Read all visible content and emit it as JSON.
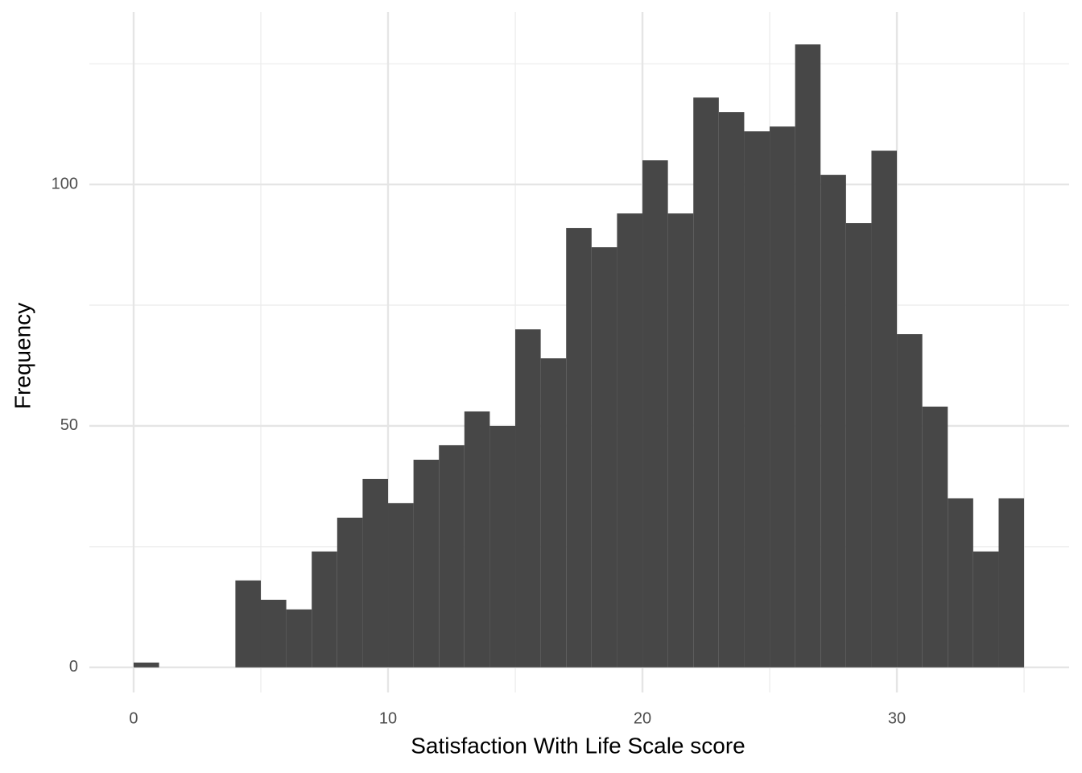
{
  "chart_data": {
    "type": "histogram",
    "x_label": "Satisfaction With Life Scale score",
    "y_label": "Frequency",
    "bins": [
      0,
      1,
      2,
      3,
      4,
      5,
      6,
      7,
      8,
      9,
      10,
      11,
      12,
      13,
      14,
      15,
      16,
      17,
      18,
      19,
      20,
      21,
      22,
      23,
      24,
      25,
      26,
      27,
      28,
      29,
      30,
      31,
      32,
      33,
      34,
      35
    ],
    "counts": [
      1,
      0,
      0,
      0,
      18,
      14,
      12,
      24,
      31,
      39,
      34,
      43,
      46,
      53,
      50,
      70,
      64,
      91,
      87,
      94,
      105,
      94,
      118,
      115,
      111,
      112,
      129,
      102,
      92,
      107,
      69,
      54,
      35,
      24,
      35
    ],
    "color": "#474747",
    "xlim": [
      -1.74,
      36.77
    ],
    "xticks": [
      0,
      10,
      20,
      30
    ],
    "xminor": [
      5,
      15,
      25,
      35
    ],
    "ylim": [
      -5.2,
      135.7
    ],
    "yticks": [
      0,
      50,
      100
    ],
    "yminor": [
      25,
      75,
      125
    ],
    "grid": true
  }
}
